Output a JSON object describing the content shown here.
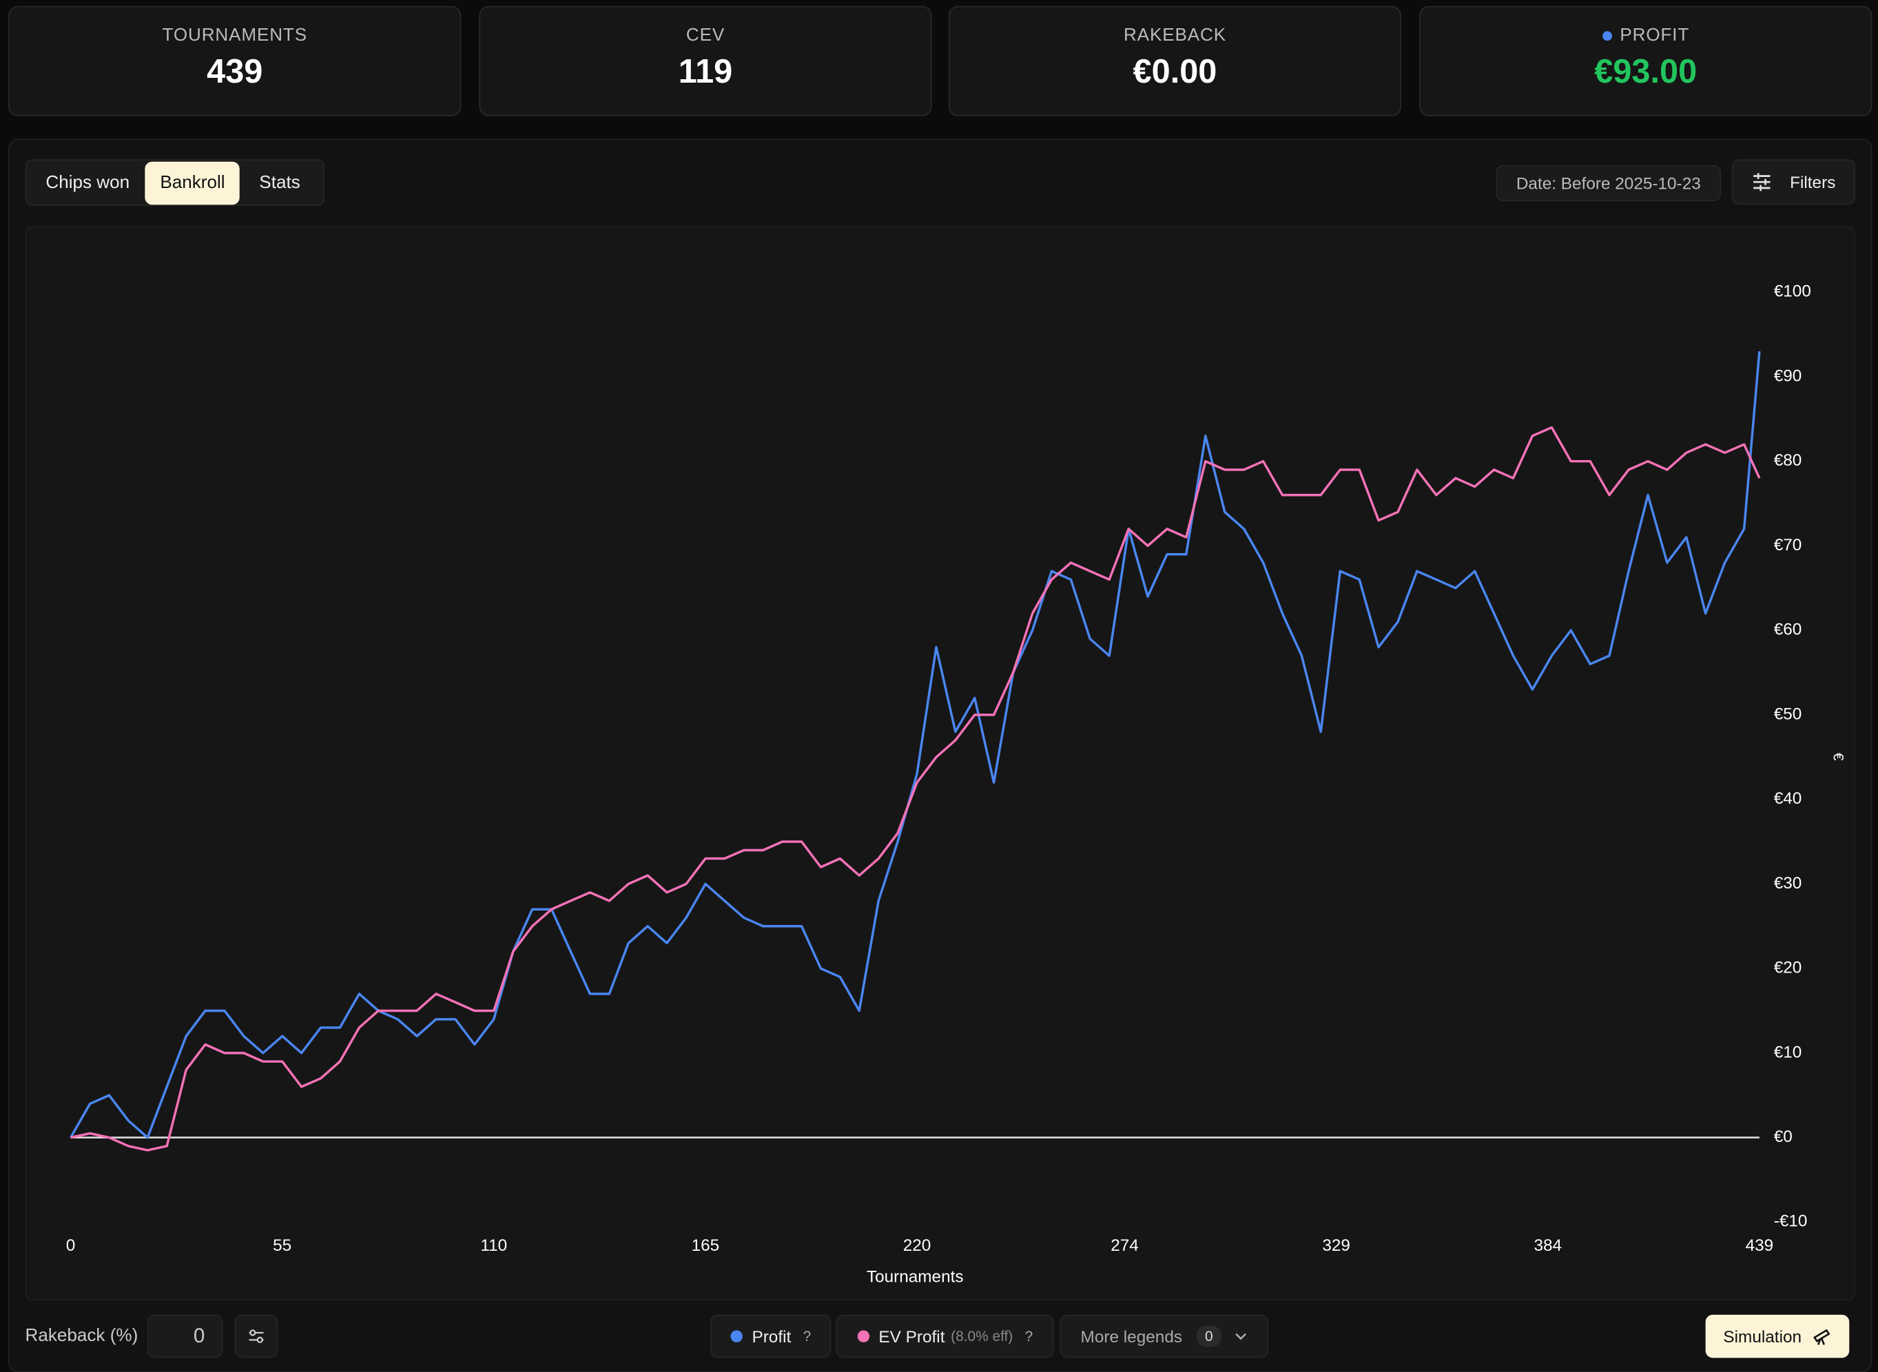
{
  "stats": [
    {
      "label": "TOURNAMENTS",
      "value": "439"
    },
    {
      "label": "CEV",
      "value": "119"
    },
    {
      "label": "RAKEBACK",
      "value": "€0.00"
    },
    {
      "label": "PROFIT",
      "value": "€93.00"
    }
  ],
  "tabs": [
    "Chips won",
    "Bankroll",
    "Stats"
  ],
  "date_filter": "Date: Before 2025-10-23",
  "filters": "Filters",
  "rakeback_label": "Rakeback (%)",
  "rakeback_value": "0",
  "legend_help": "?",
  "ev_note": "(8.0% eff)",
  "more_legends": "More legends",
  "more_count": "0",
  "simulation": "Simulation",
  "chart_data": {
    "type": "line",
    "x_label": "Tournaments",
    "y_label": "€",
    "x": [
      0,
      5,
      10,
      15,
      20,
      25,
      30,
      35,
      40,
      45,
      50,
      55,
      60,
      65,
      70,
      75,
      80,
      85,
      90,
      95,
      100,
      105,
      110,
      115,
      120,
      125,
      130,
      135,
      140,
      145,
      150,
      155,
      160,
      165,
      170,
      175,
      180,
      185,
      190,
      195,
      200,
      205,
      210,
      215,
      220,
      225,
      230,
      235,
      240,
      245,
      250,
      255,
      260,
      265,
      270,
      275,
      280,
      285,
      290,
      295,
      300,
      305,
      310,
      315,
      320,
      325,
      330,
      335,
      340,
      345,
      350,
      355,
      360,
      365,
      370,
      375,
      380,
      385,
      390,
      395,
      400,
      405,
      410,
      415,
      420,
      425,
      430,
      435,
      439
    ],
    "series": [
      {
        "name": "Profit",
        "color": "#4a86f0",
        "values": [
          0,
          4,
          5,
          2,
          0,
          6,
          12,
          15,
          15,
          12,
          10,
          12,
          10,
          13,
          13,
          17,
          15,
          14,
          12,
          14,
          14,
          11,
          14,
          22,
          27,
          27,
          22,
          17,
          17,
          23,
          25,
          23,
          26,
          30,
          28,
          26,
          25,
          25,
          25,
          20,
          19,
          15,
          28,
          35,
          43,
          58,
          48,
          52,
          42,
          55,
          60,
          67,
          66,
          59,
          57,
          72,
          64,
          69,
          69,
          83,
          74,
          72,
          68,
          62,
          57,
          48,
          67,
          66,
          58,
          61,
          67,
          66,
          65,
          67,
          62,
          57,
          53,
          57,
          60,
          56,
          57,
          67,
          76,
          68,
          71,
          62,
          68,
          72,
          93
        ]
      },
      {
        "name": "EV Profit",
        "color": "#f472b6",
        "values": [
          0,
          0.5,
          0,
          -1,
          -1.5,
          -1,
          8,
          11,
          10,
          10,
          9,
          9,
          6,
          7,
          9,
          13,
          15,
          15,
          15,
          17,
          16,
          15,
          15,
          22,
          25,
          27,
          28,
          29,
          28,
          30,
          31,
          29,
          30,
          33,
          33,
          34,
          34,
          35,
          35,
          32,
          33,
          31,
          33,
          36,
          42,
          45,
          47,
          50,
          50,
          55,
          62,
          66,
          68,
          67,
          66,
          72,
          70,
          72,
          71,
          80,
          79,
          79,
          80,
          76,
          76,
          76,
          79,
          79,
          73,
          74,
          79,
          76,
          78,
          77,
          79,
          78,
          83,
          84,
          80,
          80,
          76,
          79,
          80,
          79,
          81,
          82,
          81,
          82,
          78
        ]
      }
    ],
    "xlim": [
      0,
      439
    ],
    "xticks": [
      0,
      55,
      110,
      165,
      220,
      274,
      329,
      384,
      439
    ],
    "ylim": [
      -10,
      100
    ],
    "yticks": [
      {
        "value": -10,
        "label": "-€10"
      },
      {
        "value": 0,
        "label": "€0"
      },
      {
        "value": 10,
        "label": "€10"
      },
      {
        "value": 20,
        "label": "€20"
      },
      {
        "value": 30,
        "label": "€30"
      },
      {
        "value": 40,
        "label": "€40"
      },
      {
        "value": 50,
        "label": "€50"
      },
      {
        "value": 60,
        "label": "€60"
      },
      {
        "value": 70,
        "label": "€70"
      },
      {
        "value": 80,
        "label": "€80"
      },
      {
        "value": 90,
        "label": "€90"
      },
      {
        "value": 100,
        "label": "€100"
      }
    ],
    "zero_line": true
  }
}
